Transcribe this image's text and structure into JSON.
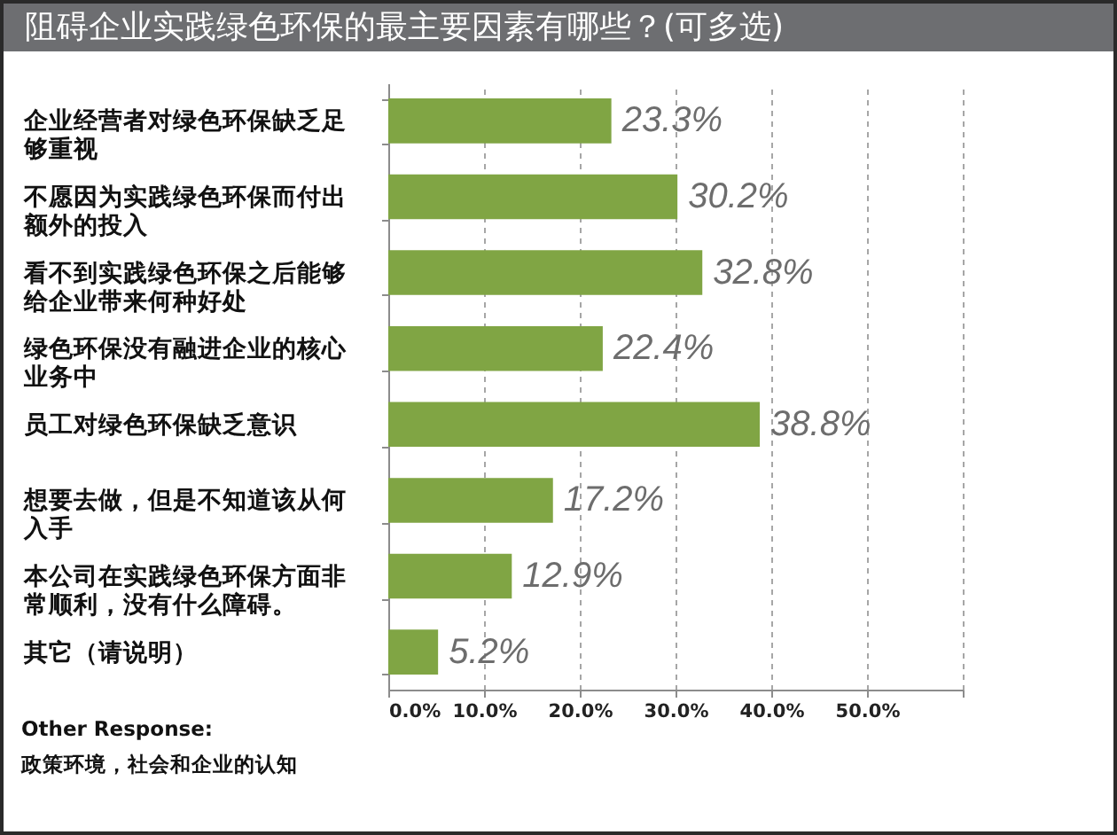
{
  "chart_data": {
    "type": "bar",
    "orientation": "horizontal",
    "title": "阻碍企业实践绿色环保的最主要因素有哪些？(可多选)",
    "categories": [
      "企业经营者对绿色环保缺乏足够重视",
      "不愿因为实践绿色环保而付出额外的投入",
      "看不到实践绿色环保之后能够给企业带来何种好处",
      "绿色环保没有融进企业的核心业务中",
      "员工对绿色环保缺乏意识",
      "想要去做，但是不知道该从何入手",
      "本公司在实践绿色环保方面非常顺利，没有什么障碍。",
      "其它（请说明）"
    ],
    "values": [
      23.3,
      30.2,
      32.8,
      22.4,
      38.8,
      17.2,
      12.9,
      5.2
    ],
    "value_labels": [
      "23.3%",
      "30.2%",
      "32.8%",
      "22.4%",
      "38.8%",
      "17.2%",
      "12.9%",
      "5.2%"
    ],
    "color": "#80a544",
    "xlim": [
      0,
      60
    ],
    "xticks": [
      {
        "value": 0,
        "label": "0.0%"
      },
      {
        "value": 10,
        "label": "10.0%"
      },
      {
        "value": 20,
        "label": "20.0%"
      },
      {
        "value": 30,
        "label": "30.0%"
      },
      {
        "value": 40,
        "label": "40.0%"
      },
      {
        "value": 50,
        "label": "50.0%"
      },
      {
        "value": 60,
        "label": null
      }
    ],
    "grid": "x",
    "annotations": [
      "Other Response:",
      "政策环境，社会和企业的认知"
    ]
  }
}
